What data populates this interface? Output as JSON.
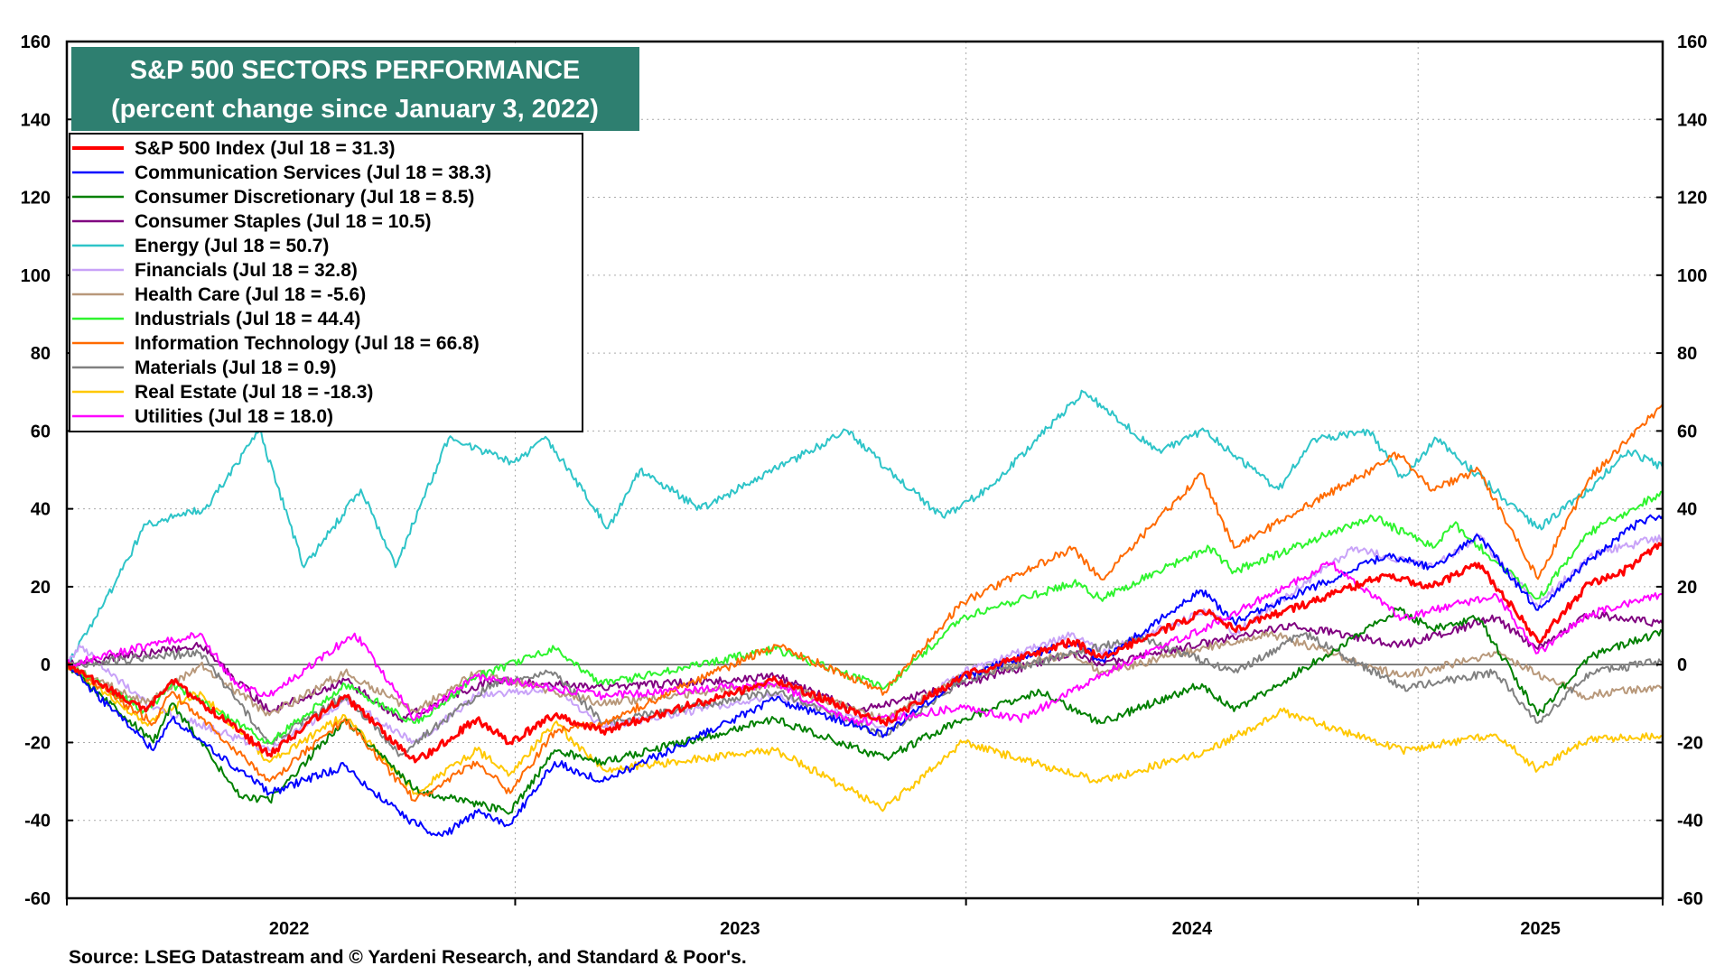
{
  "chart_data": {
    "type": "line",
    "title": "S&P 500 SECTORS PERFORMANCE",
    "subtitle": "(percent change since January 3, 2022)",
    "xlabel": "",
    "ylabel": "",
    "ylim": [
      -60,
      160
    ],
    "yticks": [
      -60,
      -40,
      -20,
      0,
      20,
      40,
      60,
      80,
      100,
      120,
      140,
      160
    ],
    "x_axis_labels": [
      "2022",
      "2023",
      "2024",
      "2025"
    ],
    "xlim": [
      "2022-01-03",
      "2025-07-18"
    ],
    "grid": "dotted",
    "legend_position": "top-left",
    "source": "Source: LSEG Datastream and © Yardeni Research, and Standard & Poor's.",
    "series": [
      {
        "name": "S&P 500 Index (Jul 18 = 31.3)",
        "color": "#ff0000",
        "points": [
          [
            "2022-01-03",
            0
          ],
          [
            "2022-03-08",
            -12
          ],
          [
            "2022-03-29",
            -4
          ],
          [
            "2022-06-16",
            -23
          ],
          [
            "2022-08-16",
            -8
          ],
          [
            "2022-10-12",
            -25
          ],
          [
            "2022-12-01",
            -14
          ],
          [
            "2022-12-28",
            -20
          ],
          [
            "2023-02-02",
            -13
          ],
          [
            "2023-03-13",
            -17
          ],
          [
            "2023-07-31",
            -4
          ],
          [
            "2023-10-27",
            -15
          ],
          [
            "2023-12-29",
            -3
          ],
          [
            "2024-03-28",
            6
          ],
          [
            "2024-04-19",
            2
          ],
          [
            "2024-07-16",
            14
          ],
          [
            "2024-08-05",
            9
          ],
          [
            "2024-12-06",
            23
          ],
          [
            "2025-01-13",
            20
          ],
          [
            "2025-02-19",
            26
          ],
          [
            "2025-04-08",
            6
          ],
          [
            "2025-05-20",
            21
          ],
          [
            "2025-06-12",
            23
          ],
          [
            "2025-07-18",
            31.3
          ]
        ]
      },
      {
        "name": "Communication Services (Jul 18 = 38.3)",
        "color": "#0000ff",
        "points": [
          [
            "2022-01-03",
            0
          ],
          [
            "2022-03-14",
            -22
          ],
          [
            "2022-03-29",
            -14
          ],
          [
            "2022-06-16",
            -33
          ],
          [
            "2022-08-16",
            -26
          ],
          [
            "2022-10-06",
            -40
          ],
          [
            "2022-11-03",
            -44
          ],
          [
            "2022-12-01",
            -38
          ],
          [
            "2022-12-28",
            -41
          ],
          [
            "2023-02-02",
            -25
          ],
          [
            "2023-03-13",
            -30
          ],
          [
            "2023-07-31",
            -9
          ],
          [
            "2023-10-27",
            -18
          ],
          [
            "2023-12-29",
            -3
          ],
          [
            "2024-03-28",
            6
          ],
          [
            "2024-04-19",
            1
          ],
          [
            "2024-07-10",
            19
          ],
          [
            "2024-08-05",
            11
          ],
          [
            "2024-12-06",
            28
          ],
          [
            "2025-01-13",
            25
          ],
          [
            "2025-02-19",
            33
          ],
          [
            "2025-04-08",
            14
          ],
          [
            "2025-05-20",
            27
          ],
          [
            "2025-07-01",
            37
          ],
          [
            "2025-07-18",
            38.3
          ]
        ]
      },
      {
        "name": "Consumer Discretionary (Jul 18 = 8.5)",
        "color": "#008000",
        "points": [
          [
            "2022-01-03",
            0
          ],
          [
            "2022-03-14",
            -20
          ],
          [
            "2022-03-29",
            -10
          ],
          [
            "2022-05-24",
            -34
          ],
          [
            "2022-06-16",
            -35
          ],
          [
            "2022-08-16",
            -14
          ],
          [
            "2022-10-12",
            -32
          ],
          [
            "2022-12-28",
            -38
          ],
          [
            "2023-02-02",
            -22
          ],
          [
            "2023-03-13",
            -25
          ],
          [
            "2023-07-31",
            -14
          ],
          [
            "2023-10-27",
            -24
          ],
          [
            "2023-12-29",
            -14
          ],
          [
            "2024-03-01",
            -7
          ],
          [
            "2024-04-19",
            -15
          ],
          [
            "2024-07-10",
            -5
          ],
          [
            "2024-08-05",
            -12
          ],
          [
            "2024-12-16",
            14
          ],
          [
            "2025-01-13",
            9
          ],
          [
            "2025-02-19",
            12
          ],
          [
            "2025-04-08",
            -13
          ],
          [
            "2025-05-20",
            2
          ],
          [
            "2025-07-18",
            8.5
          ]
        ]
      },
      {
        "name": "Consumer Staples (Jul 18 = 10.5)",
        "color": "#800080",
        "points": [
          [
            "2022-01-03",
            0
          ],
          [
            "2022-04-21",
            5
          ],
          [
            "2022-06-16",
            -12
          ],
          [
            "2022-08-16",
            -4
          ],
          [
            "2022-09-30",
            -14
          ],
          [
            "2022-12-13",
            -4
          ],
          [
            "2023-03-13",
            -6
          ],
          [
            "2023-07-31",
            -3
          ],
          [
            "2023-10-06",
            -12
          ],
          [
            "2023-12-29",
            -5
          ],
          [
            "2024-03-28",
            3
          ],
          [
            "2024-04-19",
            0
          ],
          [
            "2024-09-20",
            10
          ],
          [
            "2024-12-20",
            5
          ],
          [
            "2025-03-05",
            12
          ],
          [
            "2025-04-08",
            4
          ],
          [
            "2025-05-20",
            13
          ],
          [
            "2025-07-18",
            10.5
          ]
        ]
      },
      {
        "name": "Energy (Jul 18 = 50.7)",
        "color": "#2ec4c8",
        "points": [
          [
            "2022-01-03",
            0
          ],
          [
            "2022-02-01",
            15
          ],
          [
            "2022-03-08",
            36
          ],
          [
            "2022-04-25",
            40
          ],
          [
            "2022-06-08",
            60
          ],
          [
            "2022-07-14",
            25
          ],
          [
            "2022-08-29",
            45
          ],
          [
            "2022-09-26",
            25
          ],
          [
            "2022-11-08",
            58
          ],
          [
            "2022-12-30",
            52
          ],
          [
            "2023-01-27",
            58
          ],
          [
            "2023-03-17",
            35
          ],
          [
            "2023-04-12",
            50
          ],
          [
            "2023-05-31",
            40
          ],
          [
            "2023-09-27",
            60
          ],
          [
            "2023-10-30",
            50
          ],
          [
            "2023-12-13",
            38
          ],
          [
            "2024-01-19",
            45
          ],
          [
            "2024-04-05",
            70
          ],
          [
            "2024-06-04",
            55
          ],
          [
            "2024-07-12",
            60
          ],
          [
            "2024-09-10",
            45
          ],
          [
            "2024-10-08",
            58
          ],
          [
            "2024-11-22",
            60
          ],
          [
            "2024-12-19",
            48
          ],
          [
            "2025-01-16",
            58
          ],
          [
            "2025-04-08",
            35
          ],
          [
            "2025-05-20",
            45
          ],
          [
            "2025-06-20",
            55
          ],
          [
            "2025-07-18",
            50.7
          ]
        ]
      },
      {
        "name": "Financials (Jul 18 = 32.8)",
        "color": "#c8a2f8",
        "points": [
          [
            "2022-01-03",
            0
          ],
          [
            "2022-01-13",
            5
          ],
          [
            "2022-03-08",
            -10
          ],
          [
            "2022-06-16",
            -22
          ],
          [
            "2022-08-16",
            -9
          ],
          [
            "2022-10-12",
            -20
          ],
          [
            "2022-12-01",
            -8
          ],
          [
            "2023-02-02",
            -6
          ],
          [
            "2023-03-13",
            -16
          ],
          [
            "2023-07-31",
            -8
          ],
          [
            "2023-10-27",
            -16
          ],
          [
            "2023-12-29",
            -2
          ],
          [
            "2024-03-28",
            8
          ],
          [
            "2024-04-19",
            3
          ],
          [
            "2024-07-16",
            14
          ],
          [
            "2024-08-05",
            8
          ],
          [
            "2024-11-11",
            30
          ],
          [
            "2025-01-13",
            25
          ],
          [
            "2025-02-19",
            33
          ],
          [
            "2025-04-08",
            15
          ],
          [
            "2025-05-20",
            28
          ],
          [
            "2025-07-18",
            32.8
          ]
        ]
      },
      {
        "name": "Health Care (Jul 18 = -5.6)",
        "color": "#b8987a",
        "points": [
          [
            "2022-01-03",
            0
          ],
          [
            "2022-03-08",
            -10
          ],
          [
            "2022-04-21",
            0
          ],
          [
            "2022-06-16",
            -13
          ],
          [
            "2022-08-16",
            -2
          ],
          [
            "2022-10-12",
            -12
          ],
          [
            "2022-12-01",
            -2
          ],
          [
            "2023-03-13",
            -10
          ],
          [
            "2023-07-31",
            -5
          ],
          [
            "2023-10-27",
            -14
          ],
          [
            "2023-12-29",
            -3
          ],
          [
            "2024-03-28",
            3
          ],
          [
            "2024-04-19",
            -2
          ],
          [
            "2024-09-03",
            8
          ],
          [
            "2024-12-19",
            -3
          ],
          [
            "2025-03-05",
            3
          ],
          [
            "2025-05-15",
            -8
          ],
          [
            "2025-07-18",
            -5.6
          ]
        ]
      },
      {
        "name": "Industrials (Jul 18 = 44.4)",
        "color": "#2ef42e",
        "points": [
          [
            "2022-01-03",
            0
          ],
          [
            "2022-03-08",
            -12
          ],
          [
            "2022-03-29",
            -5
          ],
          [
            "2022-06-16",
            -20
          ],
          [
            "2022-08-16",
            -5
          ],
          [
            "2022-10-12",
            -15
          ],
          [
            "2022-12-01",
            -3
          ],
          [
            "2023-02-02",
            4
          ],
          [
            "2023-03-13",
            -5
          ],
          [
            "2023-07-31",
            4
          ],
          [
            "2023-10-27",
            -6
          ],
          [
            "2023-12-29",
            12
          ],
          [
            "2024-03-28",
            21
          ],
          [
            "2024-04-19",
            17
          ],
          [
            "2024-07-16",
            30
          ],
          [
            "2024-08-05",
            24
          ],
          [
            "2024-11-25",
            38
          ],
          [
            "2025-01-13",
            30
          ],
          [
            "2025-01-30",
            36
          ],
          [
            "2025-04-08",
            17
          ],
          [
            "2025-05-20",
            34
          ],
          [
            "2025-07-18",
            44.4
          ]
        ]
      },
      {
        "name": "Information Technology (Jul 18 = 66.8)",
        "color": "#ff6a00",
        "points": [
          [
            "2022-01-03",
            0
          ],
          [
            "2022-03-14",
            -15
          ],
          [
            "2022-03-29",
            -7
          ],
          [
            "2022-06-16",
            -30
          ],
          [
            "2022-08-16",
            -14
          ],
          [
            "2022-10-12",
            -35
          ],
          [
            "2022-12-01",
            -25
          ],
          [
            "2022-12-28",
            -33
          ],
          [
            "2023-02-02",
            -17
          ],
          [
            "2023-03-13",
            -15
          ],
          [
            "2023-07-31",
            5
          ],
          [
            "2023-10-27",
            -7
          ],
          [
            "2023-12-29",
            16
          ],
          [
            "2024-03-28",
            30
          ],
          [
            "2024-04-19",
            22
          ],
          [
            "2024-07-10",
            49
          ],
          [
            "2024-08-05",
            30
          ],
          [
            "2024-12-16",
            54
          ],
          [
            "2025-01-13",
            45
          ],
          [
            "2025-02-19",
            50
          ],
          [
            "2025-04-08",
            22
          ],
          [
            "2025-05-20",
            48
          ],
          [
            "2025-07-18",
            66.8
          ]
        ]
      },
      {
        "name": "Materials (Jul 18 = 0.9)",
        "color": "#808080",
        "points": [
          [
            "2022-01-03",
            0
          ],
          [
            "2022-04-21",
            3
          ],
          [
            "2022-06-16",
            -20
          ],
          [
            "2022-08-16",
            -8
          ],
          [
            "2022-09-30",
            -23
          ],
          [
            "2022-12-13",
            -5
          ],
          [
            "2023-02-02",
            -2
          ],
          [
            "2023-03-13",
            -15
          ],
          [
            "2023-07-31",
            -7
          ],
          [
            "2023-10-27",
            -18
          ],
          [
            "2023-12-29",
            -4
          ],
          [
            "2024-05-20",
            7
          ],
          [
            "2024-08-05",
            -2
          ],
          [
            "2024-10-01",
            8
          ],
          [
            "2024-12-19",
            -6
          ],
          [
            "2025-03-05",
            -2
          ],
          [
            "2025-04-08",
            -15
          ],
          [
            "2025-05-20",
            -2
          ],
          [
            "2025-07-18",
            0.9
          ]
        ]
      },
      {
        "name": "Real Estate (Jul 18 = -18.3)",
        "color": "#ffc800",
        "points": [
          [
            "2022-01-03",
            0
          ],
          [
            "2022-03-08",
            -15
          ],
          [
            "2022-04-21",
            -7
          ],
          [
            "2022-06-16",
            -25
          ],
          [
            "2022-08-16",
            -13
          ],
          [
            "2022-10-12",
            -33
          ],
          [
            "2022-12-01",
            -22
          ],
          [
            "2022-12-28",
            -28
          ],
          [
            "2023-02-02",
            -15
          ],
          [
            "2023-03-13",
            -27
          ],
          [
            "2023-07-31",
            -22
          ],
          [
            "2023-10-27",
            -37
          ],
          [
            "2023-12-29",
            -20
          ],
          [
            "2024-04-19",
            -30
          ],
          [
            "2024-07-16",
            -22
          ],
          [
            "2024-09-13",
            -12
          ],
          [
            "2024-12-19",
            -22
          ],
          [
            "2025-03-05",
            -18
          ],
          [
            "2025-04-08",
            -27
          ],
          [
            "2025-05-20",
            -19
          ],
          [
            "2025-07-18",
            -18.3
          ]
        ]
      },
      {
        "name": "Utilities (Jul 18 = 18.0)",
        "color": "#ff00ff",
        "points": [
          [
            "2022-01-03",
            0
          ],
          [
            "2022-04-21",
            8
          ],
          [
            "2022-05-19",
            -5
          ],
          [
            "2022-06-16",
            -8
          ],
          [
            "2022-08-24",
            8
          ],
          [
            "2022-10-12",
            -14
          ],
          [
            "2022-12-01",
            -3
          ],
          [
            "2023-03-13",
            -8
          ],
          [
            "2023-07-31",
            -5
          ],
          [
            "2023-10-03",
            -15
          ],
          [
            "2023-12-29",
            -11
          ],
          [
            "2024-02-13",
            -14
          ],
          [
            "2024-05-20",
            2
          ],
          [
            "2024-07-16",
            10
          ],
          [
            "2024-10-22",
            26
          ],
          [
            "2024-12-19",
            12
          ],
          [
            "2025-03-05",
            18
          ],
          [
            "2025-04-08",
            3
          ],
          [
            "2025-05-20",
            13
          ],
          [
            "2025-07-18",
            18.0
          ]
        ]
      }
    ]
  }
}
